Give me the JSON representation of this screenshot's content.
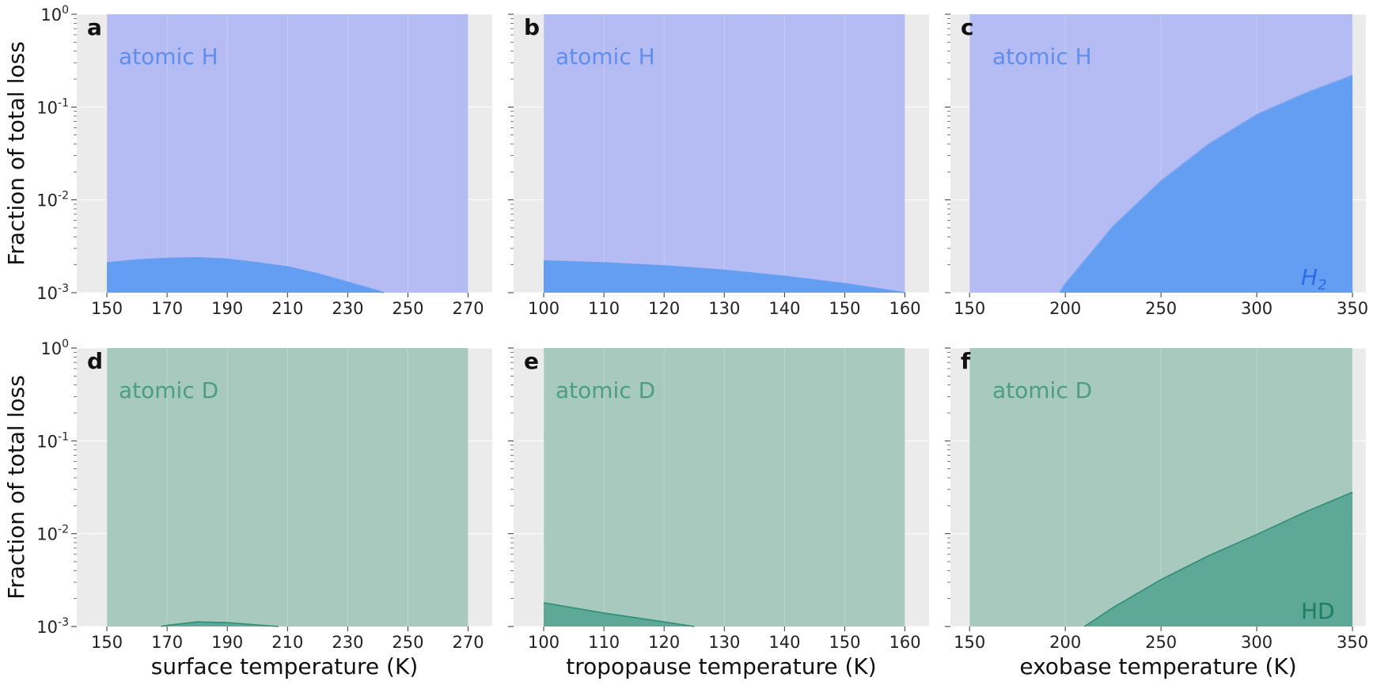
{
  "chart_data": [
    {
      "panel": "a",
      "type": "area",
      "scale_y": "log",
      "ylim": [
        0.001,
        1
      ],
      "xlim": [
        140,
        278
      ],
      "xticks": [
        150,
        170,
        190,
        210,
        230,
        250,
        270
      ],
      "xlabel": "",
      "ylabel": "Fraction of total loss",
      "total_x": [
        150,
        270
      ],
      "total_label": "atomic H",
      "minor": {
        "x": [
          150,
          160,
          170,
          180,
          190,
          200,
          210,
          220,
          230,
          240,
          242
        ],
        "y": [
          0.0021,
          0.00225,
          0.00235,
          0.00238,
          0.0023,
          0.0021,
          0.0019,
          0.0016,
          0.0013,
          0.00105,
          0.001
        ]
      },
      "minor_label": "",
      "fill_top": "#b4bcf3",
      "fill_minor": "#649ef3",
      "label_color": "#5f8eec",
      "minor_label_color": "#4a7ae8",
      "line_color": "#649ef3"
    },
    {
      "panel": "b",
      "type": "area",
      "scale_y": "log",
      "ylim": [
        0.001,
        1
      ],
      "xlim": [
        95,
        164
      ],
      "xticks": [
        100,
        110,
        120,
        130,
        140,
        150,
        160
      ],
      "xlabel": "",
      "ylabel": "",
      "total_x": [
        100,
        160
      ],
      "total_label": "atomic H",
      "minor": {
        "x": [
          100,
          110,
          120,
          130,
          140,
          150,
          160
        ],
        "y": [
          0.0022,
          0.0021,
          0.00195,
          0.00175,
          0.0015,
          0.00125,
          0.001
        ]
      },
      "minor_label": "",
      "fill_top": "#b4bcf3",
      "fill_minor": "#649ef3",
      "label_color": "#5f8eec",
      "minor_label_color": "#4a7ae8",
      "line_color": "#649ef3"
    },
    {
      "panel": "c",
      "type": "area",
      "scale_y": "log",
      "ylim": [
        0.001,
        1
      ],
      "xlim": [
        140,
        357
      ],
      "xticks": [
        150,
        200,
        250,
        300,
        350
      ],
      "xlabel": "",
      "ylabel": "",
      "total_x": [
        150,
        350
      ],
      "total_label": "atomic H",
      "minor": {
        "x": [
          197,
          200,
          225,
          250,
          275,
          300,
          325,
          350
        ],
        "y": [
          0.001,
          0.00125,
          0.0052,
          0.016,
          0.04,
          0.083,
          0.14,
          0.22
        ]
      },
      "minor_label": "H2",
      "fill_top": "#b4bcf3",
      "fill_minor": "#649ef3",
      "label_color": "#5f8eec",
      "minor_label_color": "#2f6be6",
      "line_color": "#7aa6f0"
    },
    {
      "panel": "d",
      "type": "area",
      "scale_y": "log",
      "ylim": [
        0.001,
        1
      ],
      "xlim": [
        140,
        278
      ],
      "xticks": [
        150,
        170,
        190,
        210,
        230,
        250,
        270
      ],
      "xlabel": "surface temperature (K)",
      "ylabel": "Fraction of total loss",
      "total_x": [
        150,
        270
      ],
      "total_label": "atomic D",
      "minor": {
        "x": [
          168,
          170,
          180,
          190,
          200,
          207
        ],
        "y": [
          0.001,
          0.00103,
          0.00112,
          0.0011,
          0.00104,
          0.001
        ]
      },
      "minor_label": "",
      "fill_top": "#a8c9be",
      "fill_minor": "#5ea898",
      "label_color": "#4c9d83",
      "minor_label_color": "#1e7e64",
      "line_color": "#2e8e74"
    },
    {
      "panel": "e",
      "type": "area",
      "scale_y": "log",
      "ylim": [
        0.001,
        1
      ],
      "xlim": [
        95,
        164
      ],
      "xticks": [
        100,
        110,
        120,
        130,
        140,
        150,
        160
      ],
      "xlabel": "tropopause temperature (K)",
      "ylabel": "",
      "total_x": [
        100,
        160
      ],
      "total_label": "atomic D",
      "minor": {
        "x": [
          100,
          110,
          120,
          125
        ],
        "y": [
          0.0018,
          0.0014,
          0.00112,
          0.001
        ]
      },
      "minor_label": "",
      "fill_top": "#a8c9be",
      "fill_minor": "#5ea898",
      "label_color": "#4c9d83",
      "minor_label_color": "#1e7e64",
      "line_color": "#2e8e74"
    },
    {
      "panel": "f",
      "type": "area",
      "scale_y": "log",
      "ylim": [
        0.001,
        1
      ],
      "xlim": [
        140,
        357
      ],
      "xticks": [
        150,
        200,
        250,
        300,
        350
      ],
      "xlabel": "exobase temperature (K)",
      "ylabel": "",
      "total_x": [
        150,
        350
      ],
      "total_label": "atomic D",
      "minor": {
        "x": [
          210,
          225,
          250,
          275,
          300,
          325,
          350
        ],
        "y": [
          0.001,
          0.0016,
          0.0032,
          0.0058,
          0.0098,
          0.017,
          0.028
        ]
      },
      "minor_label": "HD",
      "fill_top": "#a8c9be",
      "fill_minor": "#5ea898",
      "label_color": "#4c9d83",
      "minor_label_color": "#1e7e64",
      "line_color": "#2e8e74"
    }
  ]
}
